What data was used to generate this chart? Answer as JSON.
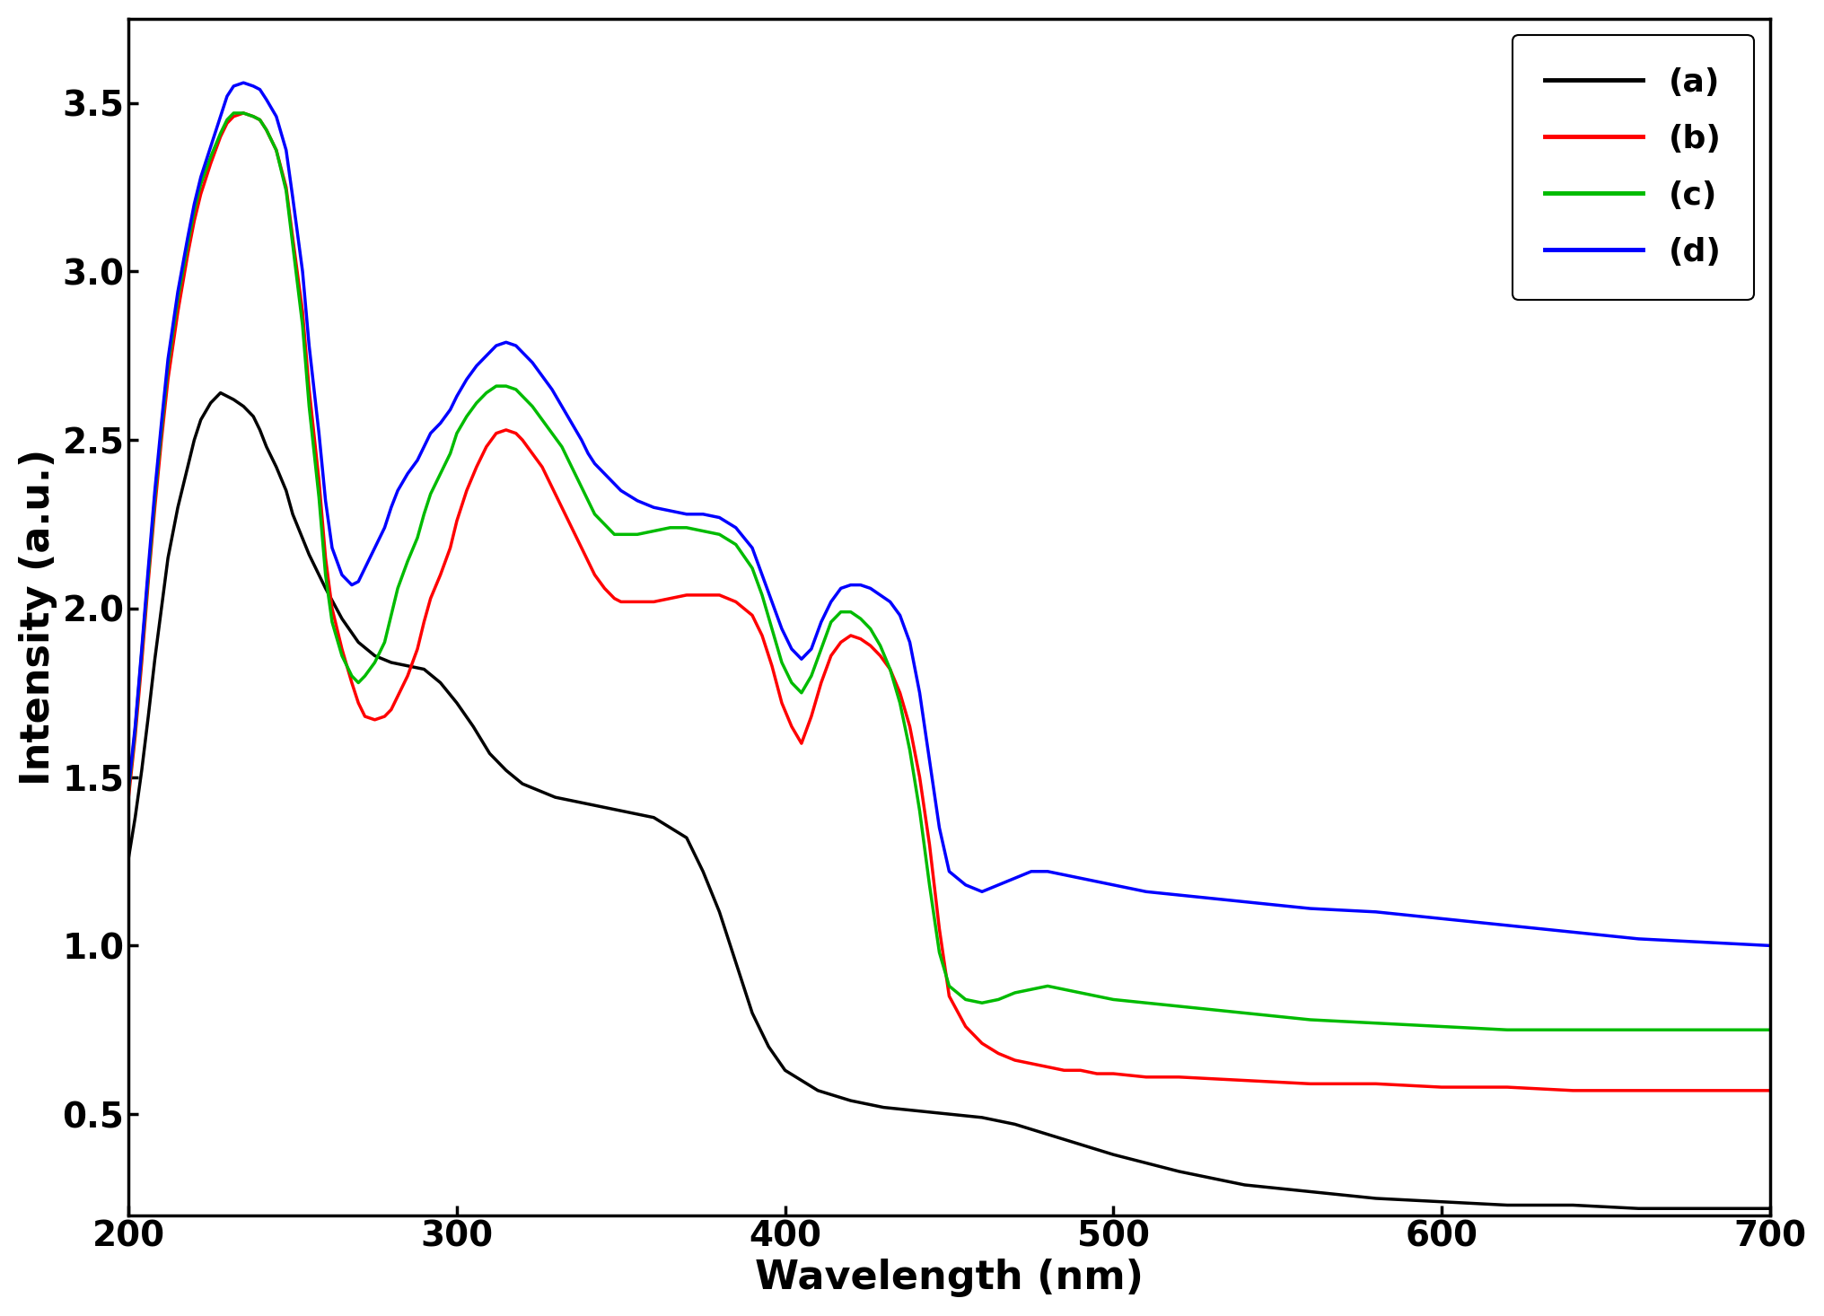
{
  "title": "",
  "xlabel": "Wavelength (nm)",
  "ylabel": "Intensity (a.u.)",
  "xlim": [
    200,
    700
  ],
  "ylim": [
    0.2,
    3.75
  ],
  "yticks": [
    0.5,
    1.0,
    1.5,
    2.0,
    2.5,
    3.0,
    3.5
  ],
  "xticks": [
    200,
    300,
    400,
    500,
    600,
    700
  ],
  "legend_labels": [
    "(a)",
    "(b)",
    "(c)",
    "(d)"
  ],
  "colors": [
    "#000000",
    "#ff0000",
    "#00bb00",
    "#0000ff"
  ],
  "linewidth": 2.5,
  "curves": {
    "a": {
      "x": [
        200,
        202,
        204,
        206,
        208,
        210,
        212,
        215,
        218,
        220,
        222,
        225,
        228,
        230,
        232,
        235,
        238,
        240,
        242,
        245,
        248,
        250,
        255,
        260,
        265,
        270,
        275,
        280,
        285,
        290,
        295,
        300,
        305,
        310,
        315,
        320,
        325,
        330,
        340,
        350,
        360,
        370,
        375,
        380,
        385,
        390,
        395,
        400,
        410,
        420,
        430,
        440,
        450,
        460,
        470,
        480,
        490,
        500,
        520,
        540,
        560,
        580,
        600,
        620,
        640,
        660,
        680,
        700
      ],
      "y": [
        1.26,
        1.38,
        1.52,
        1.68,
        1.85,
        2.0,
        2.15,
        2.3,
        2.42,
        2.5,
        2.56,
        2.61,
        2.64,
        2.63,
        2.62,
        2.6,
        2.57,
        2.53,
        2.48,
        2.42,
        2.35,
        2.28,
        2.16,
        2.06,
        1.97,
        1.9,
        1.86,
        1.84,
        1.83,
        1.82,
        1.78,
        1.72,
        1.65,
        1.57,
        1.52,
        1.48,
        1.46,
        1.44,
        1.42,
        1.4,
        1.38,
        1.32,
        1.22,
        1.1,
        0.95,
        0.8,
        0.7,
        0.63,
        0.57,
        0.54,
        0.52,
        0.51,
        0.5,
        0.49,
        0.47,
        0.44,
        0.41,
        0.38,
        0.33,
        0.29,
        0.27,
        0.25,
        0.24,
        0.23,
        0.23,
        0.22,
        0.22,
        0.22
      ]
    },
    "b": {
      "x": [
        200,
        202,
        204,
        206,
        208,
        210,
        212,
        215,
        218,
        220,
        222,
        225,
        228,
        230,
        232,
        235,
        238,
        240,
        242,
        245,
        248,
        250,
        253,
        255,
        258,
        260,
        262,
        265,
        268,
        270,
        272,
        275,
        278,
        280,
        282,
        285,
        288,
        290,
        292,
        295,
        298,
        300,
        303,
        306,
        309,
        312,
        315,
        318,
        320,
        323,
        326,
        329,
        332,
        335,
        338,
        340,
        342,
        345,
        348,
        350,
        355,
        360,
        365,
        370,
        375,
        380,
        385,
        390,
        393,
        396,
        399,
        402,
        405,
        408,
        411,
        414,
        417,
        420,
        423,
        426,
        429,
        432,
        435,
        438,
        441,
        444,
        447,
        450,
        455,
        460,
        465,
        470,
        475,
        480,
        485,
        490,
        495,
        500,
        510,
        520,
        540,
        560,
        580,
        600,
        620,
        640,
        660,
        680,
        700
      ],
      "y": [
        1.44,
        1.62,
        1.84,
        2.08,
        2.3,
        2.5,
        2.68,
        2.88,
        3.05,
        3.15,
        3.23,
        3.32,
        3.4,
        3.44,
        3.46,
        3.47,
        3.46,
        3.45,
        3.42,
        3.36,
        3.25,
        3.1,
        2.88,
        2.65,
        2.38,
        2.15,
        2.0,
        1.88,
        1.78,
        1.72,
        1.68,
        1.67,
        1.68,
        1.7,
        1.74,
        1.8,
        1.88,
        1.96,
        2.03,
        2.1,
        2.18,
        2.26,
        2.35,
        2.42,
        2.48,
        2.52,
        2.53,
        2.52,
        2.5,
        2.46,
        2.42,
        2.36,
        2.3,
        2.24,
        2.18,
        2.14,
        2.1,
        2.06,
        2.03,
        2.02,
        2.02,
        2.02,
        2.03,
        2.04,
        2.04,
        2.04,
        2.02,
        1.98,
        1.92,
        1.83,
        1.72,
        1.65,
        1.6,
        1.68,
        1.78,
        1.86,
        1.9,
        1.92,
        1.91,
        1.89,
        1.86,
        1.82,
        1.75,
        1.65,
        1.5,
        1.3,
        1.05,
        0.85,
        0.76,
        0.71,
        0.68,
        0.66,
        0.65,
        0.64,
        0.63,
        0.63,
        0.62,
        0.62,
        0.61,
        0.61,
        0.6,
        0.59,
        0.59,
        0.58,
        0.58,
        0.57,
        0.57,
        0.57,
        0.57
      ]
    },
    "c": {
      "x": [
        200,
        202,
        204,
        206,
        208,
        210,
        212,
        215,
        218,
        220,
        222,
        225,
        228,
        230,
        232,
        235,
        238,
        240,
        242,
        245,
        248,
        250,
        253,
        255,
        258,
        260,
        262,
        265,
        268,
        270,
        272,
        275,
        278,
        280,
        282,
        285,
        288,
        290,
        292,
        295,
        298,
        300,
        303,
        306,
        309,
        312,
        315,
        318,
        320,
        323,
        326,
        329,
        332,
        335,
        338,
        340,
        342,
        345,
        348,
        350,
        355,
        360,
        365,
        370,
        375,
        380,
        385,
        390,
        393,
        396,
        399,
        402,
        405,
        408,
        411,
        414,
        417,
        420,
        423,
        426,
        429,
        432,
        435,
        438,
        441,
        444,
        447,
        450,
        455,
        460,
        465,
        470,
        475,
        480,
        485,
        490,
        495,
        500,
        510,
        520,
        540,
        560,
        580,
        600,
        620,
        640,
        660,
        680,
        700
      ],
      "y": [
        1.46,
        1.64,
        1.87,
        2.1,
        2.33,
        2.53,
        2.72,
        2.92,
        3.08,
        3.18,
        3.26,
        3.34,
        3.41,
        3.45,
        3.47,
        3.47,
        3.46,
        3.45,
        3.42,
        3.36,
        3.24,
        3.08,
        2.84,
        2.6,
        2.33,
        2.1,
        1.96,
        1.86,
        1.8,
        1.78,
        1.8,
        1.84,
        1.9,
        1.98,
        2.06,
        2.14,
        2.21,
        2.28,
        2.34,
        2.4,
        2.46,
        2.52,
        2.57,
        2.61,
        2.64,
        2.66,
        2.66,
        2.65,
        2.63,
        2.6,
        2.56,
        2.52,
        2.48,
        2.42,
        2.36,
        2.32,
        2.28,
        2.25,
        2.22,
        2.22,
        2.22,
        2.23,
        2.24,
        2.24,
        2.23,
        2.22,
        2.19,
        2.12,
        2.04,
        1.94,
        1.84,
        1.78,
        1.75,
        1.8,
        1.88,
        1.96,
        1.99,
        1.99,
        1.97,
        1.94,
        1.89,
        1.82,
        1.72,
        1.58,
        1.4,
        1.18,
        0.98,
        0.88,
        0.84,
        0.83,
        0.84,
        0.86,
        0.87,
        0.88,
        0.87,
        0.86,
        0.85,
        0.84,
        0.83,
        0.82,
        0.8,
        0.78,
        0.77,
        0.76,
        0.75,
        0.75,
        0.75,
        0.75,
        0.75
      ]
    },
    "d": {
      "x": [
        200,
        202,
        204,
        206,
        208,
        210,
        212,
        215,
        218,
        220,
        222,
        225,
        228,
        230,
        232,
        235,
        238,
        240,
        242,
        245,
        248,
        250,
        253,
        255,
        258,
        260,
        262,
        265,
        268,
        270,
        272,
        275,
        278,
        280,
        282,
        285,
        288,
        290,
        292,
        295,
        298,
        300,
        303,
        306,
        309,
        312,
        315,
        318,
        320,
        323,
        326,
        329,
        332,
        335,
        338,
        340,
        342,
        345,
        348,
        350,
        355,
        360,
        365,
        370,
        375,
        380,
        385,
        390,
        393,
        396,
        399,
        402,
        405,
        408,
        411,
        414,
        417,
        420,
        423,
        426,
        429,
        432,
        435,
        438,
        441,
        444,
        447,
        450,
        455,
        460,
        465,
        470,
        475,
        480,
        485,
        490,
        495,
        500,
        510,
        520,
        540,
        560,
        580,
        600,
        620,
        640,
        660,
        680,
        700
      ],
      "y": [
        1.47,
        1.65,
        1.88,
        2.12,
        2.35,
        2.55,
        2.74,
        2.94,
        3.1,
        3.2,
        3.28,
        3.37,
        3.46,
        3.52,
        3.55,
        3.56,
        3.55,
        3.54,
        3.51,
        3.46,
        3.36,
        3.22,
        3.0,
        2.78,
        2.52,
        2.32,
        2.18,
        2.1,
        2.07,
        2.08,
        2.12,
        2.18,
        2.24,
        2.3,
        2.35,
        2.4,
        2.44,
        2.48,
        2.52,
        2.55,
        2.59,
        2.63,
        2.68,
        2.72,
        2.75,
        2.78,
        2.79,
        2.78,
        2.76,
        2.73,
        2.69,
        2.65,
        2.6,
        2.55,
        2.5,
        2.46,
        2.43,
        2.4,
        2.37,
        2.35,
        2.32,
        2.3,
        2.29,
        2.28,
        2.28,
        2.27,
        2.24,
        2.18,
        2.1,
        2.02,
        1.94,
        1.88,
        1.85,
        1.88,
        1.96,
        2.02,
        2.06,
        2.07,
        2.07,
        2.06,
        2.04,
        2.02,
        1.98,
        1.9,
        1.75,
        1.55,
        1.35,
        1.22,
        1.18,
        1.16,
        1.18,
        1.2,
        1.22,
        1.22,
        1.21,
        1.2,
        1.19,
        1.18,
        1.16,
        1.15,
        1.13,
        1.11,
        1.1,
        1.08,
        1.06,
        1.04,
        1.02,
        1.01,
        1.0
      ]
    }
  }
}
